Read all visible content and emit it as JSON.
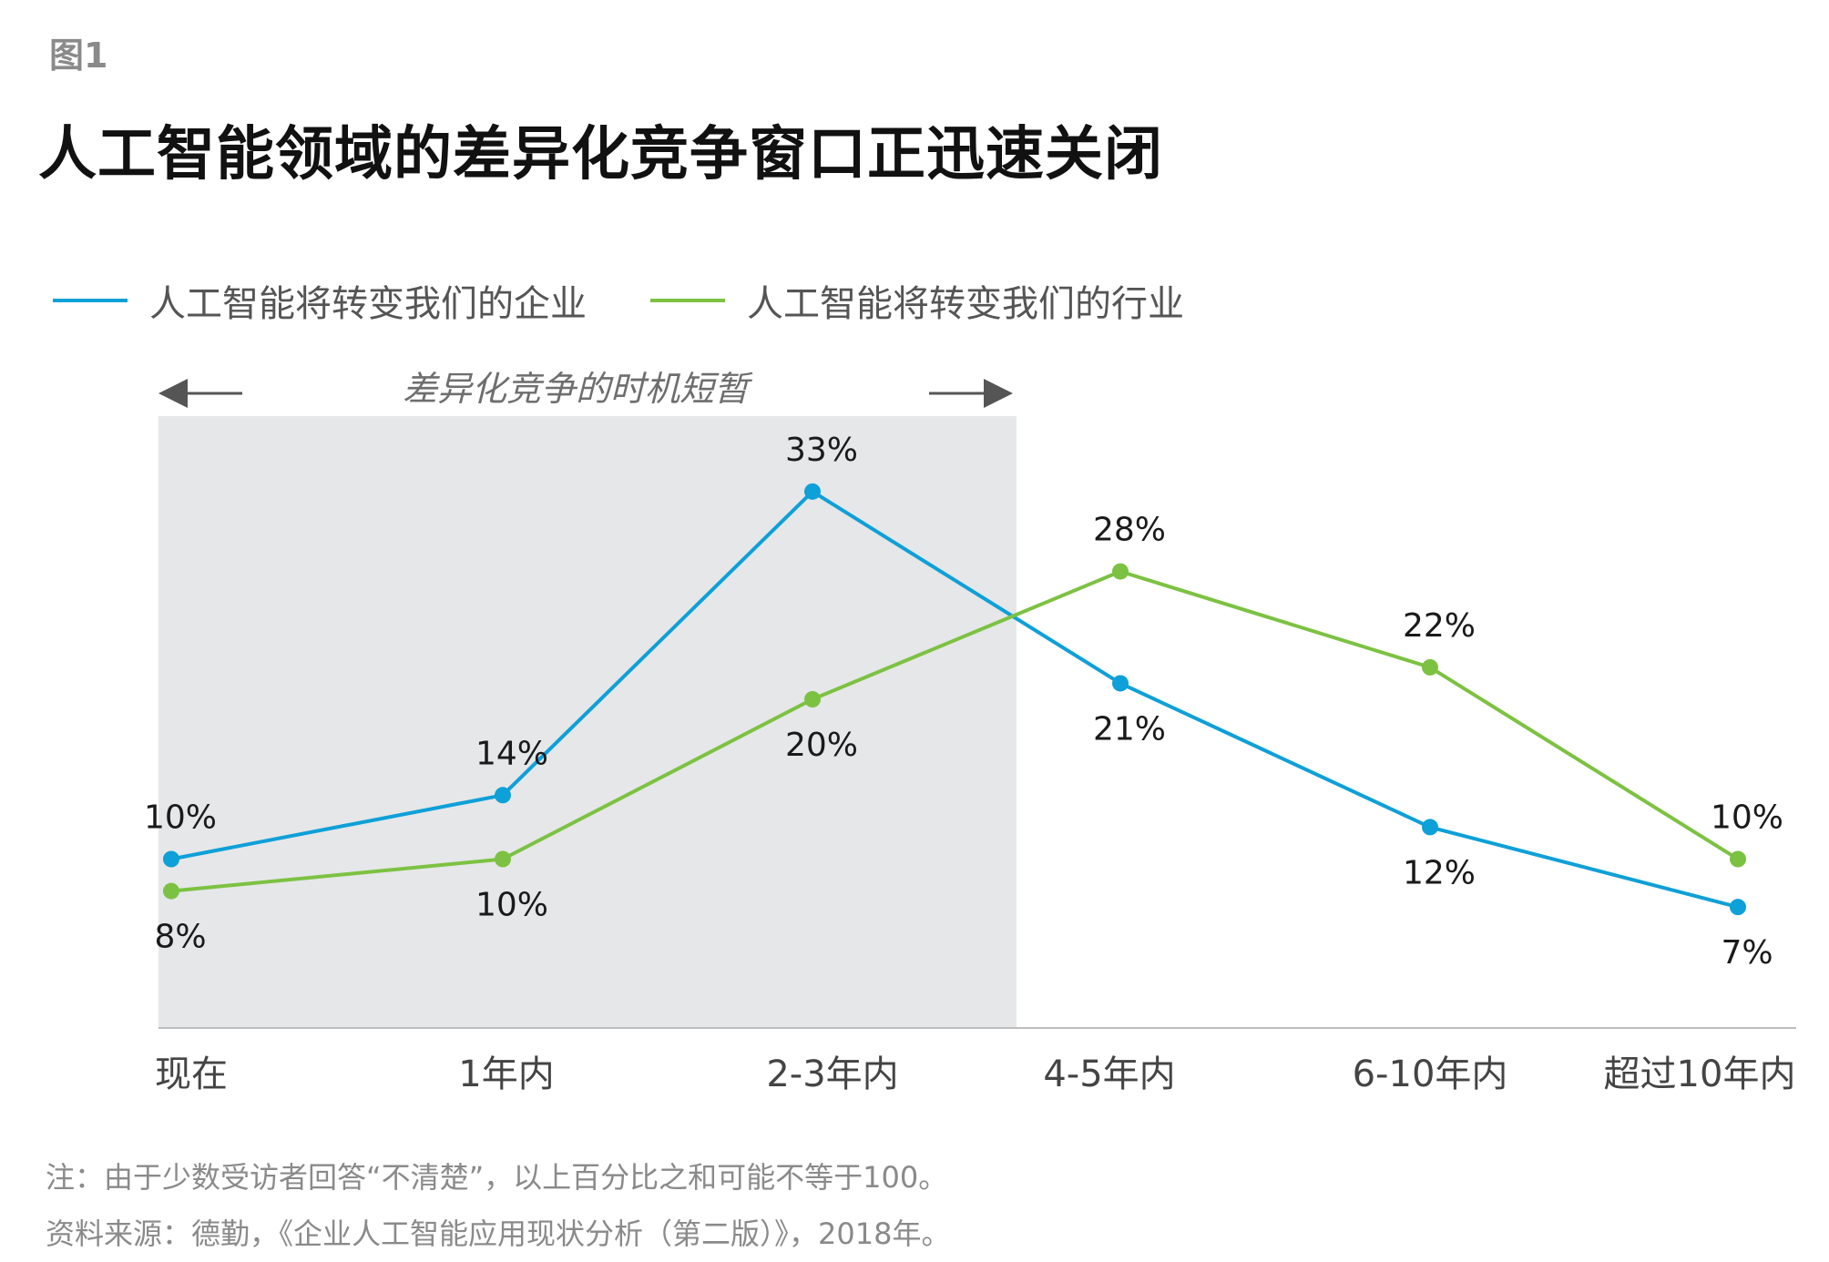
{
  "figure_label": "图1",
  "title": "人工智能领域的差异化竞争窗口正迅速关闭",
  "legend": [
    {
      "label": "人工智能将转变我们的企业",
      "color": "#0ea0d8"
    },
    {
      "label": "人工智能将转变我们的行业",
      "color": "#7cc242"
    }
  ],
  "chart_data": {
    "type": "line",
    "categories": [
      "现在",
      "1年内",
      "2-3年内",
      "4-5年内",
      "6-10年内",
      "超过10年内"
    ],
    "series": [
      {
        "name": "人工智能将转变我们的企业",
        "color": "#0ea0d8",
        "values": [
          10,
          14,
          33,
          21,
          12,
          7
        ],
        "labels": [
          "10%",
          "14%",
          "33%",
          "21%",
          "12%",
          "7%"
        ],
        "label_pos": [
          "above",
          "above",
          "above",
          "below",
          "below",
          "below"
        ]
      },
      {
        "name": "人工智能将转变我们的行业",
        "color": "#7cc242",
        "values": [
          8,
          10,
          20,
          28,
          22,
          10
        ],
        "labels": [
          "8%",
          "10%",
          "20%",
          "28%",
          "22%",
          "10%"
        ],
        "label_pos": [
          "below",
          "below",
          "below",
          "above",
          "above",
          "above"
        ]
      }
    ],
    "ylim": [
      0,
      40
    ],
    "highlight": {
      "label": "差异化竞争的时机短暂",
      "from_category": "现在",
      "to": "between 2-3年内 and 4-5年内",
      "color": "#e6e7e8"
    },
    "grid": false
  },
  "notes": [
    "注：由于少数受访者回答“不清楚”，以上百分比之和可能不等于100。",
    "资料来源：德勤，《企业人工智能应用现状分析（第二版）》，2018年。"
  ]
}
